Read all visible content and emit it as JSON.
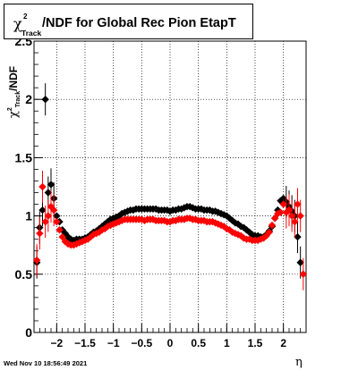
{
  "footer": {
    "timestamp": "Wed Nov 10 18:56:49 2021"
  },
  "chart_data": {
    "type": "scatter",
    "title": "/NDF for Global Rec Pion EtapT",
    "title_symbol": "χ",
    "title_sup": "2",
    "title_sub": "Track",
    "xlabel": "η",
    "ylabel_symbol": "χ",
    "ylabel_sup": "2",
    "ylabel_sub": "Track",
    "ylabel_text": "/NDF",
    "xlim": [
      -2.4,
      2.4
    ],
    "ylim": [
      0,
      2.5
    ],
    "x_ticks": [
      "-2",
      "-1.5",
      "-1",
      "-0.5",
      "0",
      "0.5",
      "1",
      "1.5",
      "2"
    ],
    "y_ticks": [
      "0.5",
      "1",
      "1.5",
      "2",
      "2.5"
    ],
    "grid": true,
    "series_colors": [
      "#000000",
      "#ff0000"
    ],
    "series": [
      {
        "x": [
          -2.35,
          -2.3,
          -2.25,
          -2.2,
          -2.15,
          -2.1,
          -2.05,
          -2.0,
          -1.95,
          -1.9,
          -1.85,
          -1.8,
          -1.75,
          -1.7,
          -1.65,
          -1.6,
          -1.55,
          -1.5,
          -1.45,
          -1.4,
          -1.35,
          -1.3,
          -1.25,
          -1.2,
          -1.15,
          -1.1,
          -1.05,
          -1.0,
          -0.95,
          -0.9,
          -0.85,
          -0.8,
          -0.75,
          -0.7,
          -0.65,
          -0.6,
          -0.55,
          -0.5,
          -0.45,
          -0.4,
          -0.35,
          -0.3,
          -0.25,
          -0.2,
          -0.15,
          -0.1,
          -0.05,
          0.0,
          0.05,
          0.1,
          0.15,
          0.2,
          0.25,
          0.3,
          0.35,
          0.4,
          0.45,
          0.5,
          0.55,
          0.6,
          0.65,
          0.7,
          0.75,
          0.8,
          0.85,
          0.9,
          0.95,
          1.0,
          1.05,
          1.1,
          1.15,
          1.2,
          1.25,
          1.3,
          1.35,
          1.4,
          1.45,
          1.5,
          1.55,
          1.6,
          1.65,
          1.7,
          1.75,
          1.8,
          1.85,
          1.9,
          1.95,
          2.0,
          2.05,
          2.1,
          2.15,
          2.2,
          2.25,
          2.3
        ],
        "y": [
          0.6,
          0.9,
          1.05,
          2.0,
          1.2,
          1.27,
          1.15,
          1.0,
          0.95,
          0.88,
          0.85,
          0.82,
          0.8,
          0.79,
          0.8,
          0.8,
          0.8,
          0.81,
          0.82,
          0.84,
          0.86,
          0.87,
          0.89,
          0.91,
          0.93,
          0.95,
          0.97,
          0.98,
          0.99,
          1.0,
          1.02,
          1.03,
          1.04,
          1.05,
          1.05,
          1.06,
          1.06,
          1.06,
          1.06,
          1.06,
          1.06,
          1.06,
          1.06,
          1.05,
          1.05,
          1.05,
          1.05,
          1.04,
          1.05,
          1.05,
          1.06,
          1.06,
          1.07,
          1.08,
          1.08,
          1.07,
          1.06,
          1.06,
          1.06,
          1.05,
          1.05,
          1.05,
          1.04,
          1.04,
          1.03,
          1.02,
          1.01,
          1.0,
          0.98,
          0.96,
          0.94,
          0.93,
          0.91,
          0.9,
          0.88,
          0.86,
          0.84,
          0.83,
          0.83,
          0.82,
          0.82,
          0.84,
          0.87,
          0.91,
          0.98,
          1.05,
          1.13,
          1.15,
          1.12,
          1.08,
          1.04,
          1.0,
          0.82,
          0.6
        ]
      },
      {
        "x": [
          -2.35,
          -2.3,
          -2.25,
          -2.2,
          -2.15,
          -2.1,
          -2.05,
          -2.0,
          -1.95,
          -1.9,
          -1.85,
          -1.8,
          -1.75,
          -1.7,
          -1.65,
          -1.6,
          -1.55,
          -1.5,
          -1.45,
          -1.4,
          -1.35,
          -1.3,
          -1.25,
          -1.2,
          -1.15,
          -1.1,
          -1.05,
          -1.0,
          -0.95,
          -0.9,
          -0.85,
          -0.8,
          -0.75,
          -0.7,
          -0.65,
          -0.6,
          -0.55,
          -0.5,
          -0.45,
          -0.4,
          -0.35,
          -0.3,
          -0.25,
          -0.2,
          -0.15,
          -0.1,
          -0.05,
          0.0,
          0.05,
          0.1,
          0.15,
          0.2,
          0.25,
          0.3,
          0.35,
          0.4,
          0.45,
          0.5,
          0.55,
          0.6,
          0.65,
          0.7,
          0.75,
          0.8,
          0.85,
          0.9,
          0.95,
          1.0,
          1.05,
          1.1,
          1.15,
          1.2,
          1.25,
          1.3,
          1.35,
          1.4,
          1.45,
          1.5,
          1.55,
          1.6,
          1.65,
          1.7,
          1.75,
          1.8,
          1.85,
          1.9,
          1.95,
          2.0,
          2.05,
          2.1,
          2.15,
          2.2,
          2.25,
          2.3,
          2.35
        ],
        "y": [
          0.62,
          0.85,
          1.25,
          0.95,
          1.0,
          1.08,
          1.05,
          0.95,
          0.88,
          0.82,
          0.78,
          0.76,
          0.75,
          0.75,
          0.76,
          0.77,
          0.78,
          0.79,
          0.8,
          0.82,
          0.84,
          0.85,
          0.86,
          0.88,
          0.89,
          0.91,
          0.92,
          0.93,
          0.94,
          0.95,
          0.96,
          0.97,
          0.97,
          0.97,
          0.97,
          0.97,
          0.97,
          0.97,
          0.96,
          0.97,
          0.97,
          0.97,
          0.96,
          0.96,
          0.96,
          0.96,
          0.95,
          0.95,
          0.96,
          0.96,
          0.97,
          0.97,
          0.97,
          0.98,
          0.98,
          0.97,
          0.97,
          0.96,
          0.96,
          0.96,
          0.95,
          0.95,
          0.95,
          0.94,
          0.93,
          0.92,
          0.91,
          0.89,
          0.88,
          0.86,
          0.85,
          0.84,
          0.83,
          0.81,
          0.8,
          0.8,
          0.79,
          0.79,
          0.79,
          0.8,
          0.81,
          0.83,
          0.86,
          0.92,
          0.98,
          1.02,
          1.03,
          1.1,
          1.03,
          1.05,
          1.0,
          0.95,
          1.1,
          1.0,
          0.5
        ]
      }
    ]
  }
}
